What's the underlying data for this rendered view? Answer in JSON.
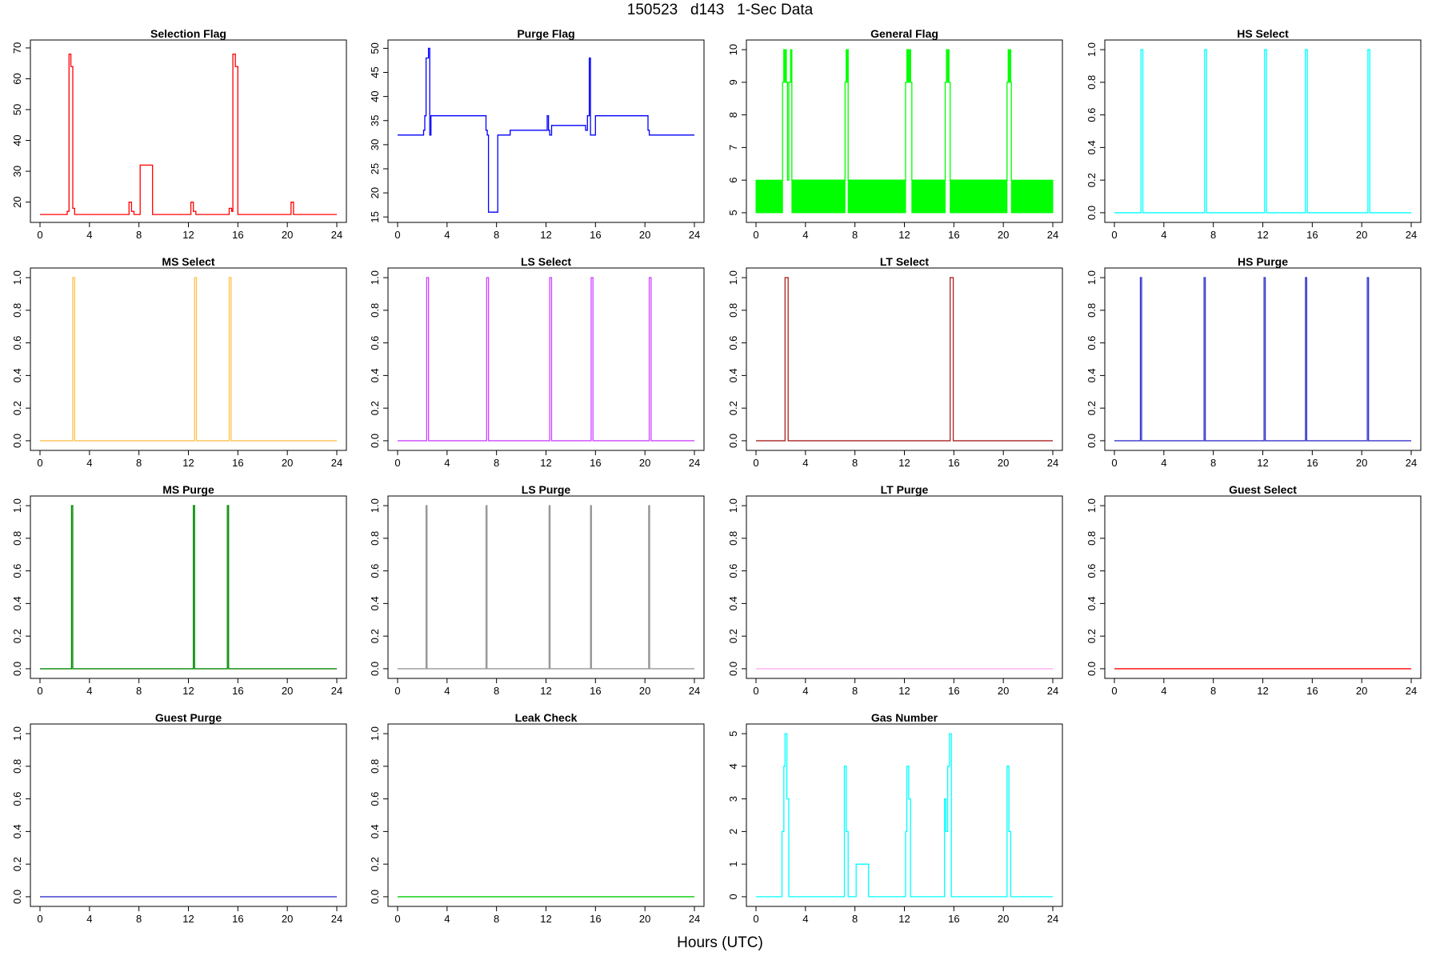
{
  "figure": {
    "title": "150523   d143   1-Sec Data",
    "xlabel": "Hours (UTC)"
  },
  "chart_data": [
    {
      "type": "line",
      "title": "Selection Flag",
      "color": "#ff0000",
      "xlim": [
        0,
        24
      ],
      "ylim": [
        15.5,
        70.5
      ],
      "xticks": [
        0,
        4,
        8,
        12,
        16,
        20,
        24
      ],
      "yticks": [
        20,
        30,
        40,
        50,
        60,
        70
      ],
      "ytick_labels": [
        "20",
        "30",
        "40",
        "50",
        "60",
        "70"
      ],
      "x": [
        0,
        2.2,
        2.2,
        2.35,
        2.35,
        2.5,
        2.5,
        2.65,
        2.65,
        2.8,
        2.8,
        7.2,
        7.2,
        7.4,
        7.4,
        7.6,
        7.6,
        8.1,
        8.1,
        9.1,
        9.1,
        12.2,
        12.2,
        12.4,
        12.4,
        12.6,
        12.6,
        15.3,
        15.3,
        15.5,
        15.5,
        15.6,
        15.6,
        15.8,
        15.8,
        16.0,
        16.0,
        20.3,
        20.3,
        20.5,
        20.5,
        24
      ],
      "y": [
        16,
        16,
        17,
        17,
        68,
        68,
        64,
        64,
        18,
        18,
        16,
        16,
        20,
        20,
        17,
        17,
        16,
        16,
        32,
        32,
        16,
        16,
        20,
        20,
        17,
        17,
        16,
        16,
        18,
        18,
        17,
        17,
        68,
        68,
        64,
        64,
        16,
        16,
        20,
        20,
        16,
        16
      ]
    },
    {
      "type": "line",
      "title": "Purge Flag",
      "color": "#0000ff",
      "xlim": [
        0,
        24
      ],
      "ylim": [
        15.2,
        50.4
      ],
      "xticks": [
        0,
        4,
        8,
        12,
        16,
        20,
        24
      ],
      "yticks": [
        15,
        20,
        25,
        30,
        35,
        40,
        45,
        50
      ],
      "ytick_labels": [
        "15",
        "20",
        "25",
        "30",
        "35",
        "40",
        "45",
        "50"
      ],
      "x": [
        0,
        2.1,
        2.1,
        2.2,
        2.2,
        2.3,
        2.3,
        2.5,
        2.5,
        2.6,
        2.6,
        2.7,
        2.7,
        7.15,
        7.15,
        7.25,
        7.25,
        7.35,
        7.35,
        8.1,
        8.1,
        9.1,
        9.1,
        12.1,
        12.1,
        12.2,
        12.2,
        12.3,
        12.3,
        12.45,
        12.45,
        15.2,
        15.2,
        15.35,
        15.35,
        15.5,
        15.5,
        15.6,
        15.6,
        16.0,
        16.0,
        20.25,
        20.25,
        20.35,
        20.35,
        24
      ],
      "y": [
        32,
        32,
        33,
        33,
        36,
        36,
        48,
        48,
        50,
        50,
        32,
        32,
        36,
        36,
        33,
        33,
        32,
        32,
        16,
        16,
        32,
        32,
        33,
        33,
        36,
        36,
        33,
        33,
        32,
        32,
        34,
        34,
        33,
        33,
        36,
        36,
        48,
        48,
        32,
        32,
        36,
        36,
        33,
        33,
        32,
        32
      ]
    },
    {
      "type": "line",
      "title": "General Flag",
      "color": "#00ff00",
      "xlim": [
        0,
        24
      ],
      "ylim": [
        4.9,
        10.1
      ],
      "xticks": [
        0,
        4,
        8,
        12,
        16,
        20,
        24
      ],
      "yticks": [
        5,
        6,
        7,
        8,
        9,
        10
      ],
      "ytick_labels": [
        "5",
        "6",
        "7",
        "8",
        "9",
        "10"
      ],
      "band": {
        "ymin": 5,
        "ymax": 6,
        "gaps": [
          [
            2.15,
            2.55
          ],
          [
            2.55,
            2.9
          ],
          [
            7.2,
            7.45
          ],
          [
            12.1,
            12.6
          ],
          [
            15.3,
            15.7
          ],
          [
            20.3,
            20.65
          ]
        ]
      },
      "x": [
        2.15,
        2.15,
        2.25,
        2.25,
        2.45,
        2.45,
        2.55,
        2.55,
        2.65,
        2.65,
        2.8,
        2.8,
        2.9,
        2.9,
        7.2,
        7.2,
        7.3,
        7.3,
        7.45,
        7.45,
        12.1,
        12.1,
        12.2,
        12.2,
        12.5,
        12.5,
        12.6,
        12.6,
        15.3,
        15.3,
        15.4,
        15.4,
        15.6,
        15.6,
        15.7,
        15.7,
        20.3,
        20.3,
        20.4,
        20.4,
        20.6,
        20.6,
        20.65,
        20.65
      ],
      "y": [
        6,
        9,
        9,
        10,
        10,
        9,
        9,
        6,
        6,
        9,
        9,
        10,
        10,
        6,
        6,
        9,
        9,
        10,
        10,
        6,
        6,
        9,
        9,
        10,
        10,
        9,
        9,
        6,
        6,
        9,
        9,
        10,
        10,
        9,
        9,
        6,
        6,
        9,
        9,
        10,
        10,
        9,
        9,
        6
      ],
      "blocks": [
        [
          2.25,
          2.45,
          9,
          10
        ],
        [
          2.8,
          2.9,
          9,
          10
        ],
        [
          7.3,
          7.45,
          9,
          10
        ],
        [
          12.2,
          12.5,
          9,
          10
        ],
        [
          15.4,
          15.6,
          9,
          10
        ],
        [
          20.4,
          20.6,
          9,
          10
        ]
      ]
    },
    {
      "type": "line",
      "title": "HS Select",
      "color": "#00ffff",
      "xlim": [
        0,
        24
      ],
      "ylim": [
        -0.02,
        1.02
      ],
      "xticks": [
        0,
        4,
        8,
        12,
        16,
        20,
        24
      ],
      "yticks": [
        0,
        0.2,
        0.4,
        0.6,
        0.8,
        1
      ],
      "ytick_labels": [
        "0.0",
        "0.2",
        "0.4",
        "0.6",
        "0.8",
        "1.0"
      ],
      "pulses": [
        [
          2.15,
          2.3
        ],
        [
          7.3,
          7.45
        ],
        [
          12.15,
          12.3
        ],
        [
          15.45,
          15.6
        ],
        [
          20.5,
          20.65
        ]
      ]
    },
    {
      "type": "line",
      "title": "MS Select",
      "color": "#ffc14d",
      "xlim": [
        0,
        24
      ],
      "ylim": [
        -0.02,
        1.02
      ],
      "xticks": [
        0,
        4,
        8,
        12,
        16,
        20,
        24
      ],
      "yticks": [
        0,
        0.2,
        0.4,
        0.6,
        0.8,
        1
      ],
      "ytick_labels": [
        "0.0",
        "0.2",
        "0.4",
        "0.6",
        "0.8",
        "1.0"
      ],
      "pulses": [
        [
          2.65,
          2.8
        ],
        [
          12.5,
          12.65
        ],
        [
          15.3,
          15.45
        ]
      ]
    },
    {
      "type": "line",
      "title": "LS Select",
      "color": "#cc44ff",
      "xlim": [
        0,
        24
      ],
      "ylim": [
        -0.02,
        1.02
      ],
      "xticks": [
        0,
        4,
        8,
        12,
        16,
        20,
        24
      ],
      "yticks": [
        0,
        0.2,
        0.4,
        0.6,
        0.8,
        1
      ],
      "ytick_labels": [
        "0.0",
        "0.2",
        "0.4",
        "0.6",
        "0.8",
        "1.0"
      ],
      "pulses": [
        [
          2.35,
          2.5
        ],
        [
          7.2,
          7.35
        ],
        [
          12.3,
          12.45
        ],
        [
          15.65,
          15.8
        ],
        [
          20.35,
          20.5
        ]
      ]
    },
    {
      "type": "line",
      "title": "LT Select",
      "color": "#aa2222",
      "xlim": [
        0,
        24
      ],
      "ylim": [
        -0.02,
        1.02
      ],
      "xticks": [
        0,
        4,
        8,
        12,
        16,
        20,
        24
      ],
      "yticks": [
        0,
        0.2,
        0.4,
        0.6,
        0.8,
        1
      ],
      "ytick_labels": [
        "0.0",
        "0.2",
        "0.4",
        "0.6",
        "0.8",
        "1.0"
      ],
      "pulses": [
        [
          2.35,
          2.6
        ],
        [
          15.7,
          15.95
        ]
      ]
    },
    {
      "type": "line",
      "title": "HS Purge",
      "color": "#3333cc",
      "xlim": [
        0,
        24
      ],
      "ylim": [
        -0.02,
        1.02
      ],
      "xticks": [
        0,
        4,
        8,
        12,
        16,
        20,
        24
      ],
      "yticks": [
        0,
        0.2,
        0.4,
        0.6,
        0.8,
        1
      ],
      "ytick_labels": [
        "0.0",
        "0.2",
        "0.4",
        "0.6",
        "0.8",
        "1.0"
      ],
      "pulses": [
        [
          2.1,
          2.2
        ],
        [
          7.25,
          7.35
        ],
        [
          12.1,
          12.2
        ],
        [
          15.45,
          15.55
        ],
        [
          20.45,
          20.55
        ]
      ]
    },
    {
      "type": "line",
      "title": "MS Purge",
      "color": "#008800",
      "xlim": [
        0,
        24
      ],
      "ylim": [
        -0.02,
        1.02
      ],
      "xticks": [
        0,
        4,
        8,
        12,
        16,
        20,
        24
      ],
      "yticks": [
        0,
        0.2,
        0.4,
        0.6,
        0.8,
        1
      ],
      "ytick_labels": [
        "0.0",
        "0.2",
        "0.4",
        "0.6",
        "0.8",
        "1.0"
      ],
      "pulses": [
        [
          2.55,
          2.65
        ],
        [
          12.4,
          12.5
        ],
        [
          15.15,
          15.25
        ]
      ]
    },
    {
      "type": "line",
      "title": "LS Purge",
      "color": "#999999",
      "xlim": [
        0,
        24
      ],
      "ylim": [
        -0.02,
        1.02
      ],
      "xticks": [
        0,
        4,
        8,
        12,
        16,
        20,
        24
      ],
      "yticks": [
        0,
        0.2,
        0.4,
        0.6,
        0.8,
        1
      ],
      "ytick_labels": [
        "0.0",
        "0.2",
        "0.4",
        "0.6",
        "0.8",
        "1.0"
      ],
      "pulses": [
        [
          2.3,
          2.38
        ],
        [
          7.15,
          7.23
        ],
        [
          12.25,
          12.33
        ],
        [
          15.6,
          15.68
        ],
        [
          20.3,
          20.38
        ]
      ]
    },
    {
      "type": "line",
      "title": "LT Purge",
      "color": "#ffaaee",
      "xlim": [
        0,
        24
      ],
      "ylim": [
        -0.02,
        1.02
      ],
      "xticks": [
        0,
        4,
        8,
        12,
        16,
        20,
        24
      ],
      "yticks": [
        0,
        0.2,
        0.4,
        0.6,
        0.8,
        1
      ],
      "ytick_labels": [
        "0.0",
        "0.2",
        "0.4",
        "0.6",
        "0.8",
        "1.0"
      ],
      "pulses": []
    },
    {
      "type": "line",
      "title": "Guest Select",
      "color": "#ff0000",
      "xlim": [
        0,
        24
      ],
      "ylim": [
        -0.02,
        1.02
      ],
      "xticks": [
        0,
        4,
        8,
        12,
        16,
        20,
        24
      ],
      "yticks": [
        0,
        0.2,
        0.4,
        0.6,
        0.8,
        1
      ],
      "ytick_labels": [
        "0.0",
        "0.2",
        "0.4",
        "0.6",
        "0.8",
        "1.0"
      ],
      "pulses": []
    },
    {
      "type": "line",
      "title": "Guest Purge",
      "color": "#3333cc",
      "xlim": [
        0,
        24
      ],
      "ylim": [
        -0.02,
        1.02
      ],
      "xticks": [
        0,
        4,
        8,
        12,
        16,
        20,
        24
      ],
      "yticks": [
        0,
        0.2,
        0.4,
        0.6,
        0.8,
        1
      ],
      "ytick_labels": [
        "0.0",
        "0.2",
        "0.4",
        "0.6",
        "0.8",
        "1.0"
      ],
      "pulses": []
    },
    {
      "type": "line",
      "title": "Leak Check",
      "color": "#00cc00",
      "xlim": [
        0,
        24
      ],
      "ylim": [
        -0.02,
        1.02
      ],
      "xticks": [
        0,
        4,
        8,
        12,
        16,
        20,
        24
      ],
      "yticks": [
        0,
        0.2,
        0.4,
        0.6,
        0.8,
        1
      ],
      "ytick_labels": [
        "0.0",
        "0.2",
        "0.4",
        "0.6",
        "0.8",
        "1.0"
      ],
      "pulses": []
    },
    {
      "type": "line",
      "title": "Gas Number",
      "color": "#00ffff",
      "xlim": [
        0,
        24
      ],
      "ylim": [
        -0.1,
        5.1
      ],
      "xticks": [
        0,
        4,
        8,
        12,
        16,
        20,
        24
      ],
      "yticks": [
        0,
        1,
        2,
        3,
        4,
        5
      ],
      "ytick_labels": [
        "0",
        "1",
        "2",
        "3",
        "4",
        "5"
      ],
      "x": [
        0,
        2.1,
        2.1,
        2.25,
        2.25,
        2.35,
        2.35,
        2.5,
        2.5,
        2.65,
        2.65,
        2.8,
        2.8,
        7.15,
        7.15,
        7.3,
        7.3,
        7.45,
        7.45,
        8.1,
        8.1,
        9.1,
        9.1,
        12.1,
        12.1,
        12.2,
        12.2,
        12.35,
        12.35,
        12.5,
        12.5,
        12.6,
        12.6,
        15.25,
        15.25,
        15.35,
        15.35,
        15.5,
        15.5,
        15.65,
        15.65,
        15.8,
        15.8,
        16.0,
        16.0,
        20.3,
        20.3,
        20.45,
        20.45,
        20.6,
        20.6,
        24
      ],
      "y": [
        0,
        0,
        2,
        2,
        4,
        4,
        5,
        5,
        3,
        3,
        0,
        0,
        0,
        0,
        4,
        4,
        2,
        2,
        0,
        0,
        1,
        1,
        0,
        0,
        2,
        2,
        4,
        4,
        3,
        3,
        0,
        0,
        0,
        0,
        3,
        3,
        2,
        2,
        4,
        4,
        5,
        5,
        0,
        0,
        0,
        0,
        4,
        4,
        2,
        2,
        0,
        0
      ]
    }
  ]
}
